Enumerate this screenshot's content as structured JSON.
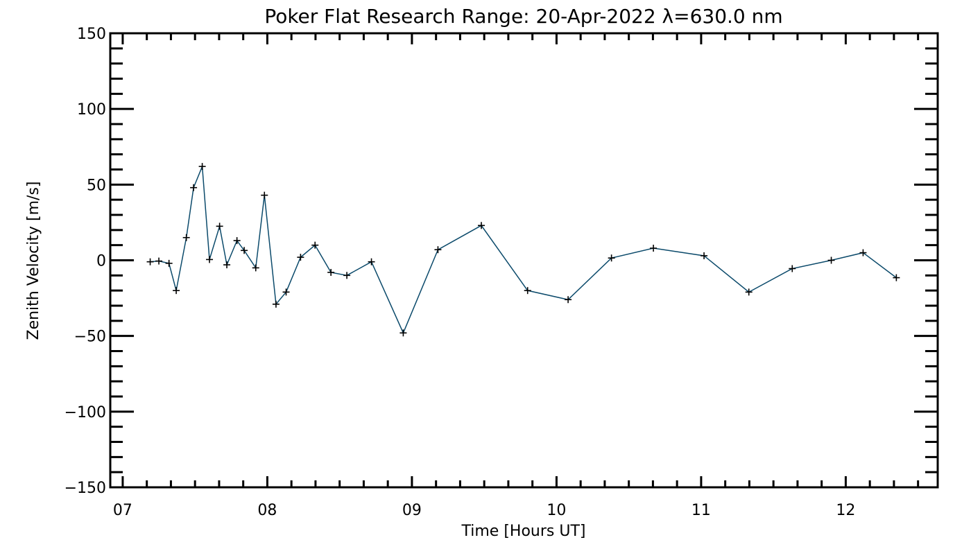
{
  "chart_data": {
    "type": "line",
    "title": "Poker Flat Research Range: 20-Apr-2022 λ=630.0 nm",
    "xlabel": "Time [Hours UT]",
    "ylabel": "Zenith Velocity [m/s]",
    "xlim": [
      6.914,
      12.636
    ],
    "ylim": [
      -150,
      150
    ],
    "xticks": [
      7,
      8,
      9,
      10,
      11,
      12
    ],
    "xtick_labels": [
      "07",
      "08",
      "09",
      "10",
      "11",
      "12"
    ],
    "yticks": [
      -150,
      -100,
      -50,
      0,
      50,
      100,
      150
    ],
    "ytick_labels": [
      "−150",
      "−100",
      "−50",
      "0",
      "50",
      "100",
      "150"
    ],
    "x_minor_per_major": 6,
    "y_minor_step": 10,
    "grid": false,
    "line_color": "#0b4a6b",
    "marker": "plus",
    "series": [
      {
        "name": "Zenith Velocity",
        "x": [
          7.19,
          7.25,
          7.32,
          7.37,
          7.44,
          7.49,
          7.55,
          7.6,
          7.67,
          7.72,
          7.79,
          7.84,
          7.92,
          7.98,
          8.06,
          8.13,
          8.23,
          8.33,
          8.44,
          8.55,
          8.72,
          8.94,
          9.18,
          9.48,
          9.8,
          10.08,
          10.38,
          10.67,
          11.02,
          11.33,
          11.63,
          11.9,
          12.12,
          12.35
        ],
        "y": [
          -1,
          -0.5,
          -2,
          -20,
          15,
          48,
          62,
          0.5,
          22.5,
          -3,
          13,
          6.5,
          -5,
          43,
          -29,
          -21,
          2,
          10,
          -8,
          -10,
          -1,
          -48,
          7,
          23,
          -20,
          -26,
          1.5,
          8,
          3,
          -21,
          -5.5,
          0,
          5,
          -11.5
        ]
      }
    ]
  }
}
